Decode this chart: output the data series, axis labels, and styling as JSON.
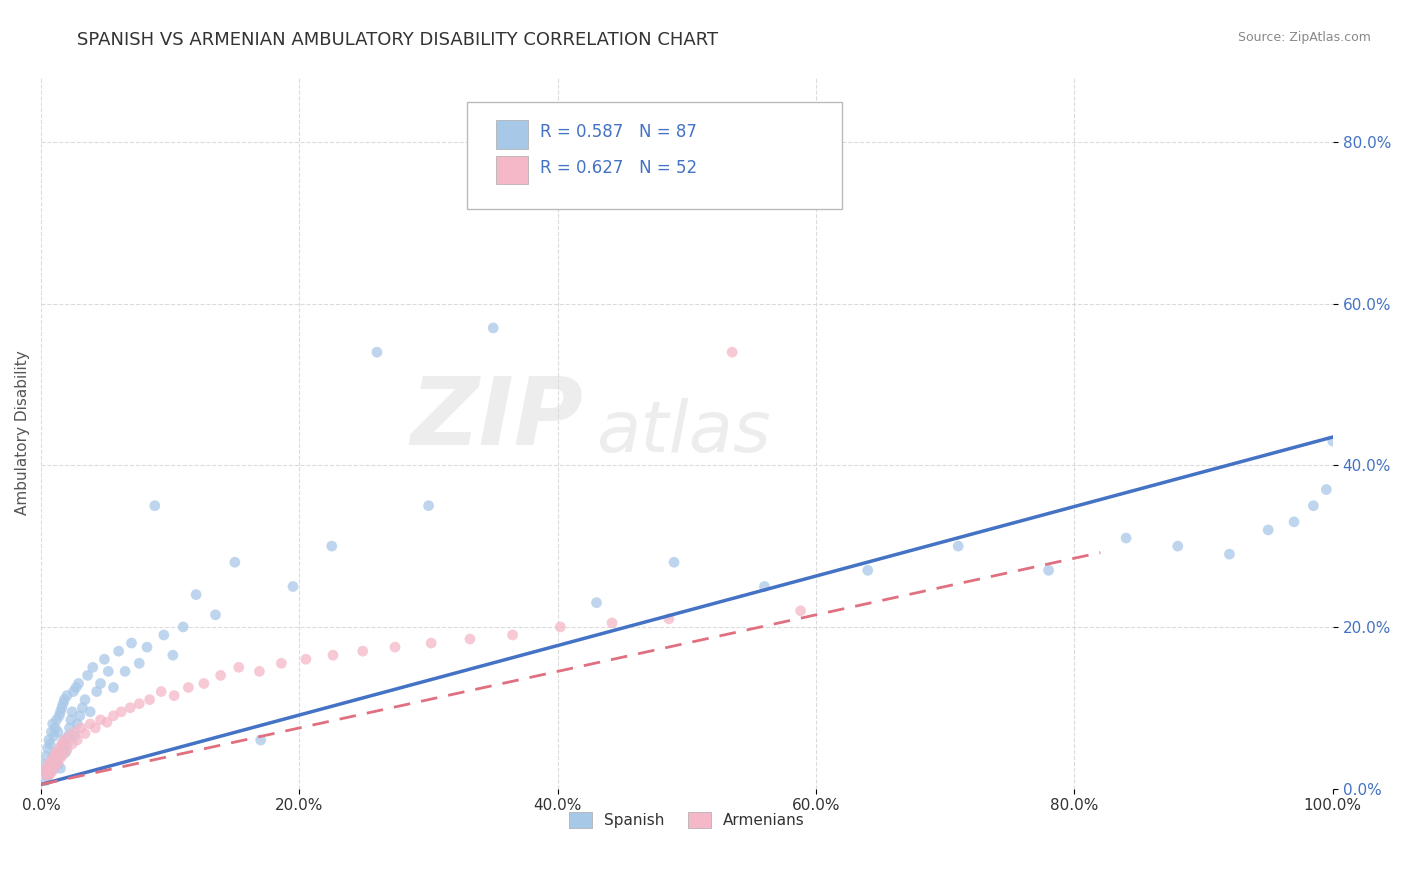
{
  "title": "SPANISH VS ARMENIAN AMBULATORY DISABILITY CORRELATION CHART",
  "source": "Source: ZipAtlas.com",
  "ylabel": "Ambulatory Disability",
  "xlim": [
    0.0,
    1.0
  ],
  "ylim": [
    0.0,
    0.88
  ],
  "x_ticks": [
    0.0,
    0.2,
    0.4,
    0.6,
    0.8,
    1.0
  ],
  "x_tick_labels": [
    "0.0%",
    "20.0%",
    "40.0%",
    "60.0%",
    "80.0%",
    "100.0%"
  ],
  "y_ticks": [
    0.0,
    0.2,
    0.4,
    0.6,
    0.8
  ],
  "y_tick_labels": [
    "0.0%",
    "20.0%",
    "40.0%",
    "60.0%",
    "80.0%"
  ],
  "spanish_color": "#A8C8E8",
  "armenian_color": "#F4B8C8",
  "spanish_line_color": "#4472C4",
  "armenian_line_color": "#E07080",
  "R_spanish": 0.587,
  "N_spanish": 87,
  "R_armenian": 0.627,
  "N_armenian": 52,
  "watermark_zip": "ZIP",
  "watermark_atlas": "atlas",
  "legend_label_spanish": "Spanish",
  "legend_label_armenian": "Armenians",
  "background_color": "#FFFFFF",
  "grid_color": "#CCCCCC",
  "title_fontsize": 13,
  "axis_label_fontsize": 11,
  "tick_fontsize": 11,
  "spanish_line_intercept": 0.005,
  "spanish_line_slope": 0.43,
  "armenian_line_intercept": 0.005,
  "armenian_line_slope": 0.35,
  "spanish_points_x": [
    0.002,
    0.003,
    0.004,
    0.004,
    0.005,
    0.005,
    0.006,
    0.006,
    0.007,
    0.007,
    0.008,
    0.008,
    0.009,
    0.009,
    0.01,
    0.01,
    0.011,
    0.011,
    0.012,
    0.012,
    0.013,
    0.013,
    0.014,
    0.014,
    0.015,
    0.015,
    0.016,
    0.016,
    0.017,
    0.017,
    0.018,
    0.018,
    0.019,
    0.02,
    0.02,
    0.021,
    0.022,
    0.023,
    0.024,
    0.025,
    0.026,
    0.027,
    0.028,
    0.029,
    0.03,
    0.032,
    0.034,
    0.036,
    0.038,
    0.04,
    0.043,
    0.046,
    0.049,
    0.052,
    0.056,
    0.06,
    0.065,
    0.07,
    0.076,
    0.082,
    0.088,
    0.095,
    0.102,
    0.11,
    0.12,
    0.135,
    0.15,
    0.17,
    0.195,
    0.225,
    0.26,
    0.3,
    0.35,
    0.43,
    0.49,
    0.56,
    0.64,
    0.71,
    0.78,
    0.84,
    0.88,
    0.92,
    0.95,
    0.97,
    0.985,
    0.995,
    1.0
  ],
  "spanish_points_y": [
    0.03,
    0.02,
    0.01,
    0.04,
    0.015,
    0.05,
    0.025,
    0.06,
    0.02,
    0.055,
    0.03,
    0.07,
    0.04,
    0.08,
    0.025,
    0.065,
    0.035,
    0.075,
    0.045,
    0.085,
    0.03,
    0.07,
    0.04,
    0.09,
    0.025,
    0.095,
    0.05,
    0.1,
    0.055,
    0.105,
    0.06,
    0.11,
    0.045,
    0.055,
    0.115,
    0.065,
    0.075,
    0.085,
    0.095,
    0.12,
    0.065,
    0.125,
    0.08,
    0.13,
    0.09,
    0.1,
    0.11,
    0.14,
    0.095,
    0.15,
    0.12,
    0.13,
    0.16,
    0.145,
    0.125,
    0.17,
    0.145,
    0.18,
    0.155,
    0.175,
    0.35,
    0.19,
    0.165,
    0.2,
    0.24,
    0.215,
    0.28,
    0.06,
    0.25,
    0.3,
    0.54,
    0.35,
    0.57,
    0.23,
    0.28,
    0.25,
    0.27,
    0.3,
    0.27,
    0.31,
    0.3,
    0.29,
    0.32,
    0.33,
    0.35,
    0.37,
    0.43
  ],
  "armenian_points_x": [
    0.003,
    0.004,
    0.005,
    0.006,
    0.007,
    0.008,
    0.009,
    0.01,
    0.011,
    0.012,
    0.013,
    0.014,
    0.015,
    0.016,
    0.017,
    0.018,
    0.02,
    0.022,
    0.024,
    0.026,
    0.028,
    0.031,
    0.034,
    0.038,
    0.042,
    0.046,
    0.051,
    0.056,
    0.062,
    0.069,
    0.076,
    0.084,
    0.093,
    0.103,
    0.114,
    0.126,
    0.139,
    0.153,
    0.169,
    0.186,
    0.205,
    0.226,
    0.249,
    0.274,
    0.302,
    0.332,
    0.365,
    0.402,
    0.442,
    0.486,
    0.535,
    0.588
  ],
  "armenian_points_y": [
    0.02,
    0.025,
    0.015,
    0.03,
    0.018,
    0.035,
    0.022,
    0.04,
    0.028,
    0.045,
    0.032,
    0.05,
    0.038,
    0.055,
    0.042,
    0.06,
    0.048,
    0.065,
    0.055,
    0.07,
    0.06,
    0.075,
    0.068,
    0.08,
    0.075,
    0.085,
    0.082,
    0.09,
    0.095,
    0.1,
    0.105,
    0.11,
    0.12,
    0.115,
    0.125,
    0.13,
    0.14,
    0.15,
    0.145,
    0.155,
    0.16,
    0.165,
    0.17,
    0.175,
    0.18,
    0.185,
    0.19,
    0.2,
    0.205,
    0.21,
    0.54,
    0.22
  ]
}
